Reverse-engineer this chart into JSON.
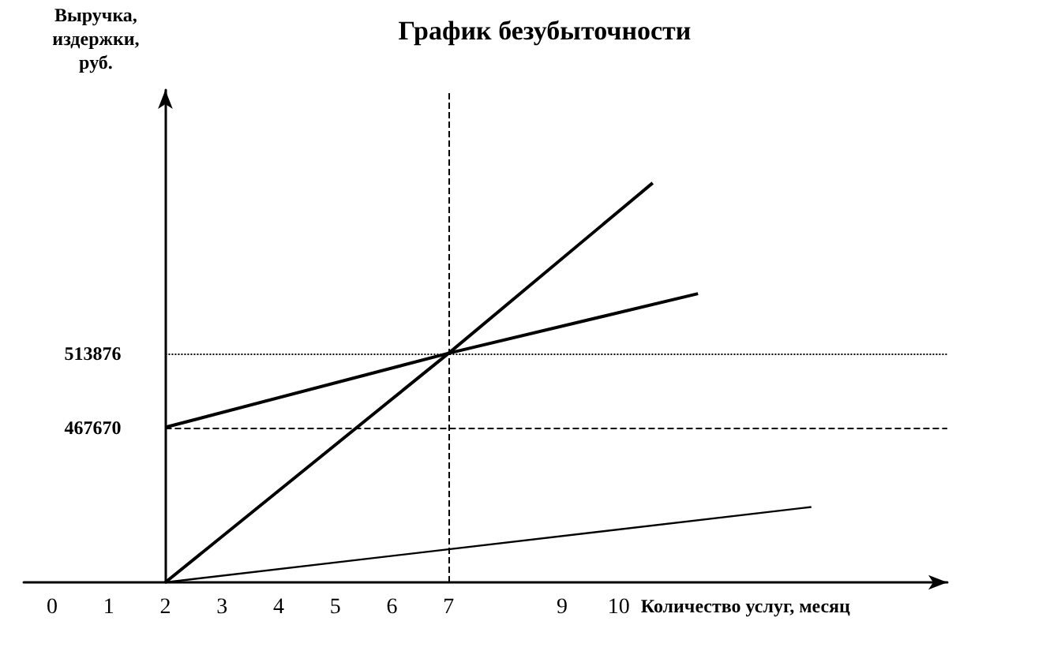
{
  "chart_data": {
    "type": "line",
    "title": "График безубыточности",
    "xlabel": "Количество услуг, месяц",
    "ylabel": "Выручка, издержки, руб.",
    "series": [
      {
        "color": "#000000",
        "x": [
          2,
          7,
          10.6
        ],
        "values": [
          371000,
          513876,
          620000
        ]
      },
      {
        "color": "#000000",
        "x": [
          2,
          7,
          11.4
        ],
        "values": [
          467670,
          513876,
          551000
        ]
      },
      {
        "color": "#000000",
        "x": [
          2,
          13.4
        ],
        "values": [
          371000,
          418000
        ]
      }
    ],
    "xlim": [
      -0.5,
      15.8
    ],
    "xticks": [
      0,
      1,
      2,
      3,
      4,
      5,
      6,
      7,
      9,
      10
    ],
    "ylim": [
      371000,
      678000
    ],
    "yticks": [
      467670,
      513876
    ],
    "ref_lines": [
      {
        "axis": "y",
        "value": 513876,
        "line_style": "dotted"
      },
      {
        "axis": "y",
        "value": 467670,
        "line_style": "dashed"
      },
      {
        "axis": "x",
        "value": 7,
        "line_style": "dashed"
      }
    ],
    "grid": false,
    "marker": "none",
    "line_style": "solid"
  }
}
